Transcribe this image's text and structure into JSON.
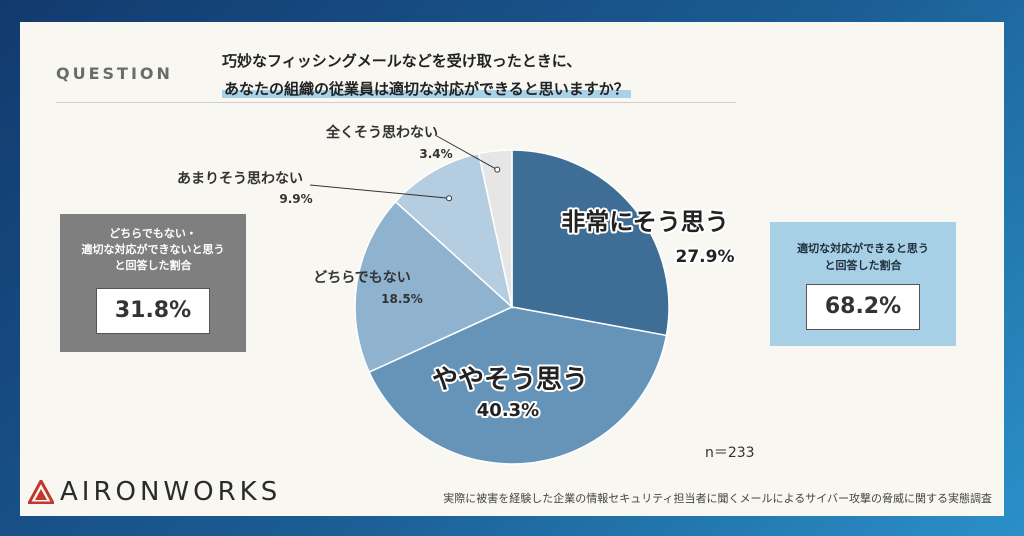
{
  "question": {
    "label": "QUESTION",
    "line1": "巧妙なフィッシングメールなどを受け取ったときに、",
    "line2": "あなたの組織の従業員は適切な対応ができると思いますか？"
  },
  "left_box": {
    "line1": "どちらでもない・",
    "line2": "適切な対応ができないと思う",
    "line3": "と回答した割合",
    "value": "31.8%"
  },
  "right_box": {
    "line1": "適切な対応ができると思う",
    "line2": "と回答した割合",
    "value": "68.2%"
  },
  "sample": "n＝233",
  "logo_text": "AIRONWORKS",
  "footer": "実際に被害を経験した企業の情報セキュリティ担当者に聞くメールによるサイバー攻撃の脅威に関する実態調査",
  "colors": {
    "slice1": "#3e6e95",
    "slice2": "#6694b8",
    "slice3": "#8fb3ce",
    "slice4": "#b4cde0",
    "slice5": "#e6e6e6",
    "left_box": "#7f7f7f",
    "right_box": "#a7d0e6",
    "logo_red": "#c0392b"
  },
  "chart_data": {
    "type": "pie",
    "categories": [
      "非常にそう思う",
      "ややそう思う",
      "どちらでもない",
      "あまりそう思わない",
      "全くそう思わない"
    ],
    "values": [
      27.9,
      40.3,
      18.5,
      9.9,
      3.4
    ],
    "value_labels": [
      "27.9%",
      "40.3%",
      "18.5%",
      "9.9%",
      "3.4%"
    ]
  }
}
